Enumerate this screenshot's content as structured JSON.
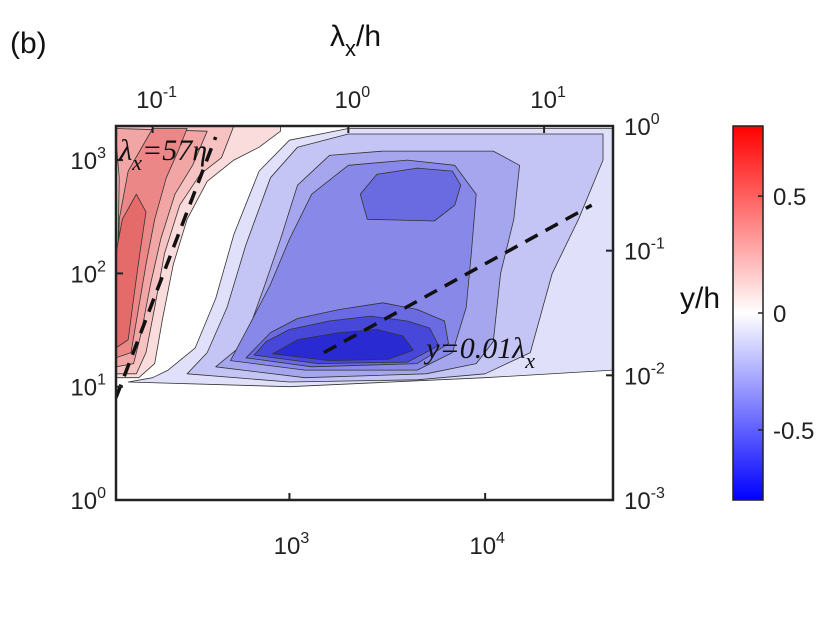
{
  "chart_data": {
    "type": "heatmap",
    "panel_label": "(b)",
    "top_axis_label": {
      "base": "λ",
      "sub": "x",
      "rest": "/h"
    },
    "right_axis_label": "y/h",
    "x_axis": {
      "scale": "log",
      "range": [
        130,
        45000
      ],
      "ticks": [
        {
          "value": 1000,
          "label": "10",
          "exp": "3"
        },
        {
          "value": 10000,
          "label": "10",
          "exp": "4"
        }
      ]
    },
    "y_axis": {
      "scale": "log",
      "range": [
        1,
        2000
      ],
      "ticks": [
        {
          "value": 1,
          "label": "10",
          "exp": "0"
        },
        {
          "value": 10,
          "label": "10",
          "exp": "1"
        },
        {
          "value": 100,
          "label": "10",
          "exp": "2"
        },
        {
          "value": 1000,
          "label": "10",
          "exp": "3"
        }
      ]
    },
    "top_axis": {
      "scale": "log",
      "range": [
        0.065,
        22.5
      ],
      "ticks": [
        {
          "value": 0.1,
          "label": "10",
          "exp": "-1"
        },
        {
          "value": 1,
          "label": "10",
          "exp": "0"
        },
        {
          "value": 10,
          "label": "10",
          "exp": "1"
        }
      ]
    },
    "right_axis": {
      "scale": "log",
      "range": [
        0.001,
        1
      ],
      "ticks": [
        {
          "value": 0.001,
          "label": "10",
          "exp": "-3"
        },
        {
          "value": 0.01,
          "label": "10",
          "exp": "-2"
        },
        {
          "value": 0.1,
          "label": "10",
          "exp": "-1"
        },
        {
          "value": 1,
          "label": "10",
          "exp": "0"
        }
      ]
    },
    "colorbar": {
      "range": [
        -0.8,
        0.8
      ],
      "colors": [
        "#0000ff",
        "#ffffff",
        "#ff0000"
      ],
      "ticks": [
        {
          "value": 0.5,
          "label": "0.5"
        },
        {
          "value": 0,
          "label": "0"
        },
        {
          "value": -0.5,
          "label": "-0.5"
        }
      ]
    },
    "lines": [
      {
        "name": "λx=57η",
        "style": "dashed",
        "x": [
          130,
          420
        ],
        "y": [
          8,
          1600
        ]
      },
      {
        "name": "y=0.01λx",
        "style": "dashed",
        "x": [
          1500,
          35000
        ],
        "y": [
          20,
          400
        ]
      }
    ],
    "annotations": [
      {
        "text": "λ",
        "sub": "x",
        "rest": "=57η",
        "x": 135,
        "y": 1000
      },
      {
        "text": "y=0.01λ",
        "sub": "x",
        "rest": "",
        "x": 5000,
        "y": 18
      }
    ],
    "contour_bands": [
      {
        "level": -0.1,
        "color": "#e0e0fa",
        "points": [
          [
            150,
            11
          ],
          [
            1000,
            10
          ],
          [
            10000,
            12
          ],
          [
            45000,
            14
          ],
          [
            45000,
            1900
          ],
          [
            2000,
            1900
          ],
          [
            1000,
            1500
          ],
          [
            700,
            800
          ],
          [
            520,
            220
          ],
          [
            420,
            60
          ],
          [
            330,
            22
          ],
          [
            240,
            14
          ],
          [
            200,
            12
          ]
        ]
      },
      {
        "level": -0.2,
        "color": "#c4c4f5",
        "points": [
          [
            300,
            13
          ],
          [
            1000,
            11
          ],
          [
            4500,
            11.5
          ],
          [
            10000,
            13
          ],
          [
            17000,
            20
          ],
          [
            22000,
            100
          ],
          [
            30000,
            300
          ],
          [
            40000,
            1000
          ],
          [
            40000,
            1700
          ],
          [
            2000,
            1700
          ],
          [
            1100,
            1300
          ],
          [
            800,
            700
          ],
          [
            600,
            180
          ],
          [
            480,
            50
          ],
          [
            380,
            20
          ]
        ]
      },
      {
        "level": -0.3,
        "color": "#a6a6ef",
        "points": [
          [
            420,
            15
          ],
          [
            1200,
            12
          ],
          [
            5000,
            13
          ],
          [
            9000,
            16
          ],
          [
            11000,
            25
          ],
          [
            12000,
            100
          ],
          [
            14000,
            300
          ],
          [
            15000,
            900
          ],
          [
            11000,
            1200
          ],
          [
            3000,
            1200
          ],
          [
            1600,
            1100
          ],
          [
            1100,
            600
          ],
          [
            900,
            200
          ],
          [
            750,
            80
          ],
          [
            650,
            40
          ],
          [
            550,
            22
          ]
        ]
      },
      {
        "level": -0.4,
        "color": "#8888e8",
        "points": [
          [
            500,
            17
          ],
          [
            1200,
            14
          ],
          [
            4500,
            14
          ],
          [
            6800,
            20
          ],
          [
            8000,
            50
          ],
          [
            8500,
            150
          ],
          [
            9000,
            500
          ],
          [
            7000,
            900
          ],
          [
            4000,
            1000
          ],
          [
            2000,
            900
          ],
          [
            1300,
            500
          ],
          [
            1000,
            200
          ],
          [
            800,
            80
          ],
          [
            650,
            40
          ]
        ]
      },
      {
        "level": -0.5,
        "color": "#6a6ae1",
        "points": [
          [
            600,
            18
          ],
          [
            1300,
            15
          ],
          [
            4500,
            16
          ],
          [
            6500,
            24
          ],
          [
            6200,
            38
          ],
          [
            4500,
            48
          ],
          [
            3000,
            55
          ],
          [
            1800,
            48
          ],
          [
            1100,
            40
          ],
          [
            800,
            30
          ]
        ]
      },
      {
        "level": -0.5,
        "color": "#6a6ae1",
        "points": [
          [
            2500,
            300
          ],
          [
            5500,
            290
          ],
          [
            7000,
            400
          ],
          [
            7500,
            600
          ],
          [
            6800,
            800
          ],
          [
            4500,
            850
          ],
          [
            2800,
            750
          ],
          [
            2300,
            500
          ]
        ]
      },
      {
        "level": -0.6,
        "color": "#4747d9",
        "points": [
          [
            660,
            19
          ],
          [
            1400,
            16
          ],
          [
            4000,
            16.5
          ],
          [
            5800,
            23
          ],
          [
            5200,
            33
          ],
          [
            4000,
            38
          ],
          [
            2600,
            42
          ],
          [
            1600,
            38
          ],
          [
            1000,
            32
          ],
          [
            760,
            25
          ]
        ]
      },
      {
        "level": -0.7,
        "color": "#2a2ad2",
        "points": [
          [
            820,
            19.5
          ],
          [
            1600,
            17
          ],
          [
            3200,
            17.5
          ],
          [
            4300,
            21
          ],
          [
            3800,
            28
          ],
          [
            2800,
            32
          ],
          [
            1800,
            30
          ],
          [
            1100,
            26
          ]
        ]
      },
      {
        "level": 0.1,
        "color": "#fbdcdc",
        "points": [
          [
            130,
            12
          ],
          [
            170,
            12
          ],
          [
            205,
            16
          ],
          [
            225,
            40
          ],
          [
            255,
            120
          ],
          [
            300,
            300
          ],
          [
            380,
            650
          ],
          [
            520,
            1000
          ],
          [
            700,
            1300
          ],
          [
            900,
            1800
          ],
          [
            900,
            2000
          ],
          [
            130,
            2000
          ]
        ]
      },
      {
        "level": 0.2,
        "color": "#f7c2c2",
        "points": [
          [
            130,
            13
          ],
          [
            165,
            13
          ],
          [
            185,
            20
          ],
          [
            205,
            50
          ],
          [
            230,
            150
          ],
          [
            275,
            400
          ],
          [
            350,
            750
          ],
          [
            450,
            1050
          ],
          [
            520,
            2000
          ],
          [
            130,
            2000
          ]
        ]
      },
      {
        "level": 0.3,
        "color": "#f2a5a5",
        "points": [
          [
            130,
            15
          ],
          [
            160,
            16
          ],
          [
            175,
            30
          ],
          [
            195,
            80
          ],
          [
            220,
            200
          ],
          [
            260,
            500
          ],
          [
            320,
            900
          ],
          [
            380,
            1800
          ],
          [
            130,
            1900
          ],
          [
            130,
            1500
          ],
          [
            135,
            700
          ]
        ]
      },
      {
        "level": 0.4,
        "color": "#ec8787",
        "points": [
          [
            130,
            18
          ],
          [
            155,
            20
          ],
          [
            168,
            45
          ],
          [
            185,
            120
          ],
          [
            205,
            300
          ],
          [
            235,
            700
          ],
          [
            270,
            1200
          ],
          [
            300,
            1900
          ],
          [
            200,
            1900
          ],
          [
            150,
            800
          ],
          [
            135,
            300
          ]
        ]
      },
      {
        "level": 0.5,
        "color": "#e56a6a",
        "points": [
          [
            130,
            22
          ],
          [
            150,
            26
          ],
          [
            160,
            60
          ],
          [
            172,
            150
          ],
          [
            185,
            350
          ],
          [
            165,
            500
          ],
          [
            140,
            300
          ],
          [
            130,
            150
          ]
        ]
      }
    ]
  }
}
